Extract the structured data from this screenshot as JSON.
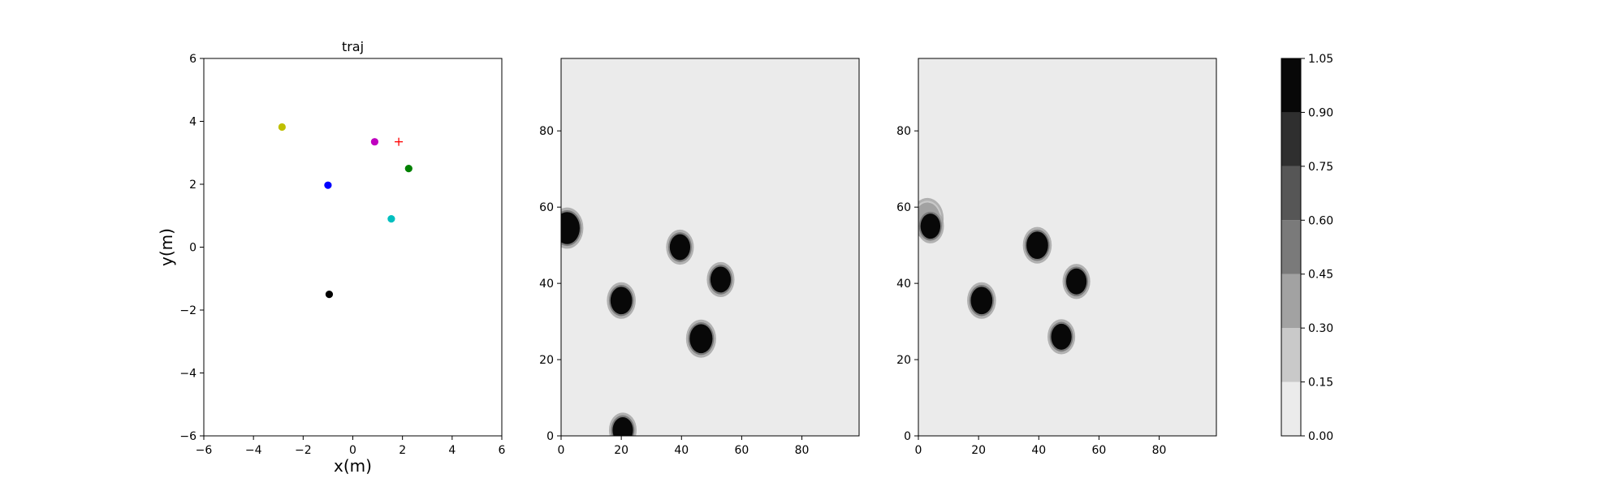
{
  "chart_data": [
    {
      "type": "scatter",
      "title": "traj",
      "xlabel": "x(m)",
      "ylabel": "y(m)",
      "xlim": [
        -6,
        6
      ],
      "ylim": [
        -6,
        6
      ],
      "xticks": [
        -6,
        -4,
        -2,
        0,
        2,
        4,
        6
      ],
      "yticks": [
        -6,
        -4,
        -2,
        0,
        2,
        4,
        6
      ],
      "grid": false,
      "points": [
        {
          "x": -2.85,
          "y": 3.82,
          "color": "#bfbf00",
          "marker": "circle"
        },
        {
          "x": 0.88,
          "y": 3.35,
          "color": "#bf00bf",
          "marker": "circle"
        },
        {
          "x": 2.25,
          "y": 2.5,
          "color": "#008000",
          "marker": "circle"
        },
        {
          "x": -1.0,
          "y": 1.97,
          "color": "#0000ff",
          "marker": "circle"
        },
        {
          "x": 1.55,
          "y": 0.9,
          "color": "#00bfbf",
          "marker": "circle"
        },
        {
          "x": -0.95,
          "y": -1.5,
          "color": "#000000",
          "marker": "circle"
        },
        {
          "x": 1.85,
          "y": 3.35,
          "color": "#ff0000",
          "marker": "plus"
        }
      ]
    },
    {
      "type": "heatmap",
      "xlim": [
        0,
        99
      ],
      "ylim": [
        0,
        99
      ],
      "xticks": [
        0,
        20,
        40,
        60,
        80
      ],
      "yticks": [
        0,
        20,
        40,
        60,
        80
      ],
      "background_value": 0.05,
      "blobs": [
        {
          "x": 2,
          "y": 54.5,
          "r": 4.2,
          "value": 1.0
        },
        {
          "x": 20,
          "y": 35.5,
          "r": 3.6,
          "value": 1.0
        },
        {
          "x": 39.5,
          "y": 49.5,
          "r": 3.4,
          "value": 1.0
        },
        {
          "x": 53,
          "y": 41,
          "r": 3.4,
          "value": 1.0
        },
        {
          "x": 46.5,
          "y": 25.5,
          "r": 3.8,
          "value": 1.0
        },
        {
          "x": 20.5,
          "y": 1.5,
          "r": 3.4,
          "value": 1.0
        }
      ]
    },
    {
      "type": "heatmap",
      "xlim": [
        0,
        99
      ],
      "ylim": [
        0,
        99
      ],
      "xticks": [
        0,
        20,
        40,
        60,
        80
      ],
      "yticks": [
        0,
        20,
        40,
        60,
        80
      ],
      "background_value": 0.05,
      "blobs": [
        {
          "x": 3,
          "y": 57,
          "r": 4.2,
          "value": 0.3
        },
        {
          "x": 4,
          "y": 55,
          "r": 3.3,
          "value": 1.0
        },
        {
          "x": 21,
          "y": 35.5,
          "r": 3.6,
          "value": 1.0
        },
        {
          "x": 39.5,
          "y": 50,
          "r": 3.6,
          "value": 1.0
        },
        {
          "x": 52.5,
          "y": 40.5,
          "r": 3.4,
          "value": 1.0
        },
        {
          "x": 47.5,
          "y": 26,
          "r": 3.4,
          "value": 1.0
        }
      ]
    }
  ],
  "colorbar": {
    "levels": [
      0.0,
      0.15,
      0.3,
      0.45,
      0.6,
      0.75,
      0.9,
      1.05
    ],
    "tick_labels": [
      "0.00",
      "0.15",
      "0.30",
      "0.45",
      "0.60",
      "0.75",
      "0.90",
      "1.05"
    ],
    "colors": [
      "#ebebeb",
      "#c9c9c9",
      "#a2a2a2",
      "#7a7a7a",
      "#565656",
      "#2f2f2f",
      "#080808"
    ]
  }
}
